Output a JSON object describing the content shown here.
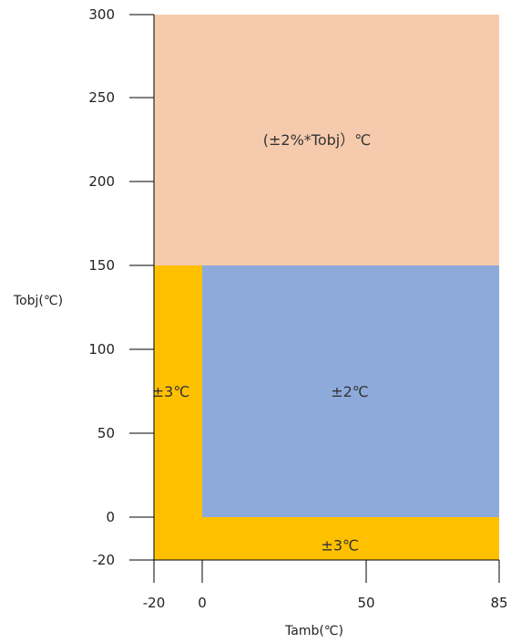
{
  "chart_data": {
    "type": "heatmap",
    "xlabel": "Tamb(℃)",
    "ylabel": "Tobj(℃)",
    "x_ticks": [
      -20,
      0,
      50,
      85
    ],
    "y_ticks": [
      -20,
      0,
      50,
      100,
      150,
      200,
      250,
      300
    ],
    "xlim": [
      -20,
      85
    ],
    "ylim": [
      -20,
      300
    ],
    "regions": [
      {
        "label": "(±2%*Tobj）℃",
        "x_range": [
          -20,
          85
        ],
        "y_range": [
          150,
          300
        ],
        "color": "#f6cbad",
        "label_at": [
          35,
          225
        ]
      },
      {
        "label": "±2℃",
        "x_range": [
          0,
          85
        ],
        "y_range": [
          0,
          150
        ],
        "color": "#8eaadb",
        "label_at": [
          45,
          75
        ]
      },
      {
        "label": "±3℃",
        "x_range": [
          -20,
          0
        ],
        "y_range": [
          -20,
          150
        ],
        "color": "#ffc000",
        "label_at": [
          -13,
          75
        ]
      },
      {
        "label": "±3℃",
        "x_range": [
          0,
          85
        ],
        "y_range": [
          -20,
          0
        ],
        "color": "#ffc000",
        "label_at": [
          42,
          -13
        ]
      }
    ]
  }
}
